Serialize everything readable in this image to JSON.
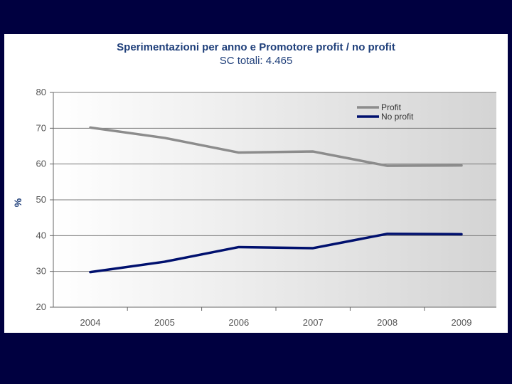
{
  "chart_data": {
    "type": "line",
    "title": "Sperimentazioni per anno e Promotore profit / no profit",
    "subtitle": "SC totali: 4.465",
    "xlabel": "",
    "ylabel": "%",
    "categories": [
      "2004",
      "2005",
      "2006",
      "2007",
      "2008",
      "2009"
    ],
    "ylim": [
      20,
      80
    ],
    "yticks": [
      20,
      30,
      40,
      50,
      60,
      70,
      80
    ],
    "grid": true,
    "legend_position": "top-right",
    "series": [
      {
        "name": "Profit",
        "color": "#8c8c8c",
        "values": [
          70.2,
          67.3,
          63.2,
          63.5,
          59.5,
          59.6
        ]
      },
      {
        "name": "No profit",
        "color": "#00106e",
        "values": [
          29.8,
          32.7,
          36.8,
          36.5,
          40.5,
          40.4
        ]
      }
    ]
  }
}
